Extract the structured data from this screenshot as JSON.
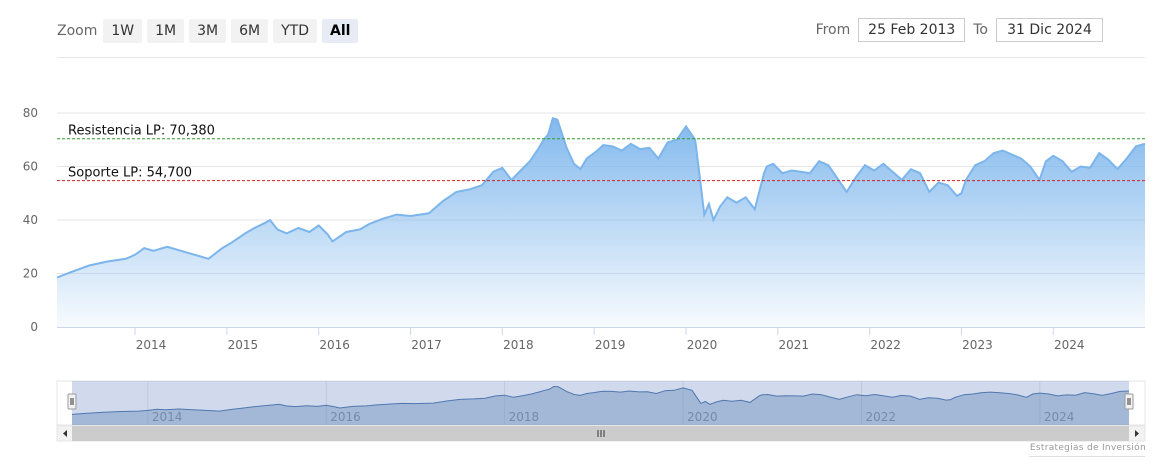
{
  "zoom": {
    "label": "Zoom",
    "buttons": [
      "1W",
      "1M",
      "3M",
      "6M",
      "YTD",
      "All"
    ],
    "active": "All"
  },
  "range": {
    "from_label": "From",
    "from_value": "25 Feb 2013",
    "to_label": "To",
    "to_value": "31 Dic 2024"
  },
  "credit": "Estrategias de Inversión",
  "colors": {
    "line": "#7cb5ec",
    "resistance": "#2e9e2e",
    "support": "#cc2222",
    "navigator_line": "#4572a7",
    "navigator_mask": "rgba(102,133,194,0.3)"
  },
  "chart_data": {
    "type": "area",
    "ylim": [
      0,
      80
    ],
    "yticks": [
      0,
      20,
      40,
      60,
      80
    ],
    "xlim": [
      2013.15,
      2024.999
    ],
    "xticks": [
      "2014",
      "2015",
      "2016",
      "2017",
      "2018",
      "2019",
      "2020",
      "2021",
      "2022",
      "2023",
      "2024"
    ],
    "navigator_ticks": [
      "2014",
      "2016",
      "2018",
      "2020",
      "2022",
      "2024"
    ],
    "grid": true,
    "annotations": [
      {
        "label": "Resistencia LP: 70,380",
        "value": 70.38,
        "kind": "resistance"
      },
      {
        "label": "Soporte LP: 54,700",
        "value": 54.7,
        "kind": "support"
      }
    ],
    "series": [
      {
        "x": [
          2013.15,
          2013.3,
          2013.5,
          2013.7,
          2013.9,
          2014.0,
          2014.1,
          2014.2,
          2014.35,
          2014.5,
          2014.65,
          2014.8,
          2014.95,
          2015.05,
          2015.2,
          2015.3,
          2015.42,
          2015.47,
          2015.55,
          2015.65,
          2015.78,
          2015.9,
          2016.0,
          2016.1,
          2016.15,
          2016.3,
          2016.45,
          2016.55,
          2016.7,
          2016.85,
          2017.0,
          2017.2,
          2017.35,
          2017.5,
          2017.65,
          2017.78,
          2017.9,
          2018.0,
          2018.1,
          2018.2,
          2018.3,
          2018.38,
          2018.45,
          2018.5,
          2018.55,
          2018.6,
          2018.7,
          2018.78,
          2018.85,
          2018.92,
          2019.0,
          2019.05,
          2019.1,
          2019.2,
          2019.3,
          2019.4,
          2019.5,
          2019.6,
          2019.7,
          2019.8,
          2019.9,
          2020.0,
          2020.1,
          2020.15,
          2020.2,
          2020.25,
          2020.3,
          2020.37,
          2020.45,
          2020.55,
          2020.65,
          2020.75,
          2020.85,
          2020.88,
          2020.95,
          2021.05,
          2021.15,
          2021.25,
          2021.35,
          2021.45,
          2021.55,
          2021.65,
          2021.75,
          2021.85,
          2021.95,
          2022.05,
          2022.15,
          2022.25,
          2022.35,
          2022.45,
          2022.55,
          2022.65,
          2022.75,
          2022.85,
          2022.95,
          2023.0,
          2023.05,
          2023.15,
          2023.25,
          2023.35,
          2023.45,
          2023.55,
          2023.65,
          2023.75,
          2023.85,
          2023.92,
          2024.0,
          2024.1,
          2024.2,
          2024.3,
          2024.4,
          2024.5,
          2024.6,
          2024.7,
          2024.8,
          2024.9,
          2024.999
        ],
        "y": [
          18.5,
          20.5,
          23.0,
          24.5,
          25.5,
          27.0,
          29.5,
          28.5,
          30.0,
          28.5,
          27.0,
          25.5,
          29.5,
          31.5,
          35.0,
          37.0,
          39.0,
          40.0,
          36.5,
          35.0,
          37.0,
          35.5,
          38.0,
          34.5,
          32.0,
          35.5,
          36.5,
          38.5,
          40.5,
          42.0,
          41.5,
          42.5,
          47.0,
          50.5,
          51.5,
          53.0,
          58.0,
          59.5,
          55.0,
          58.5,
          62.0,
          66.0,
          70.0,
          72.0,
          78.0,
          77.5,
          67.0,
          61.0,
          59.0,
          63.0,
          65.0,
          66.5,
          68.0,
          67.5,
          66.0,
          68.5,
          66.5,
          67.0,
          63.0,
          69.0,
          70.0,
          75.0,
          70.0,
          56.0,
          42.0,
          46.0,
          40.0,
          45.0,
          48.5,
          46.5,
          48.5,
          44.0,
          57.5,
          60.0,
          61.0,
          57.5,
          58.5,
          58.0,
          57.5,
          62.0,
          60.5,
          55.5,
          50.5,
          56.0,
          60.5,
          58.5,
          61.0,
          58.0,
          55.0,
          59.0,
          57.5,
          50.5,
          54.0,
          53.0,
          49.0,
          50.0,
          55.0,
          60.5,
          62.0,
          65.0,
          66.0,
          64.5,
          63.0,
          60.0,
          55.0,
          62.0,
          64.0,
          62.0,
          58.0,
          60.0,
          59.5,
          65.0,
          62.5,
          59.0,
          63.0,
          67.5,
          68.5
        ]
      }
    ]
  }
}
